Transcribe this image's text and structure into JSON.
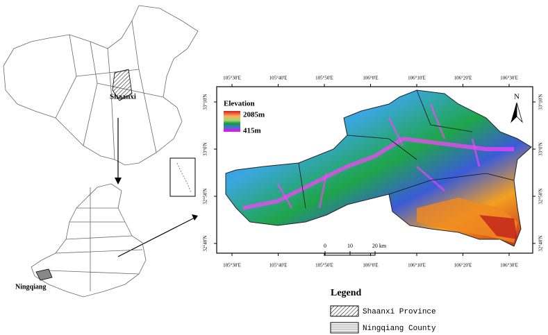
{
  "map": {
    "china_label": "Shaanxi",
    "county_label": "Ningqiang",
    "longitudes": [
      "105°30'E",
      "105°40'E",
      "105°50'E",
      "106°0'E",
      "106°10'E",
      "106°20'E",
      "106°30'E"
    ],
    "latitudes": [
      "33°10'N",
      "33°0'N",
      "32°50'N",
      "32°40'N"
    ],
    "elevation": {
      "title": "Elevation",
      "max": "2085m",
      "min": "415m"
    },
    "north": "N",
    "scale": [
      "0",
      "10",
      "20 km"
    ],
    "legend": {
      "title": "Legend",
      "items": [
        "Shaanxi Province",
        "Ningqiang County"
      ]
    }
  }
}
